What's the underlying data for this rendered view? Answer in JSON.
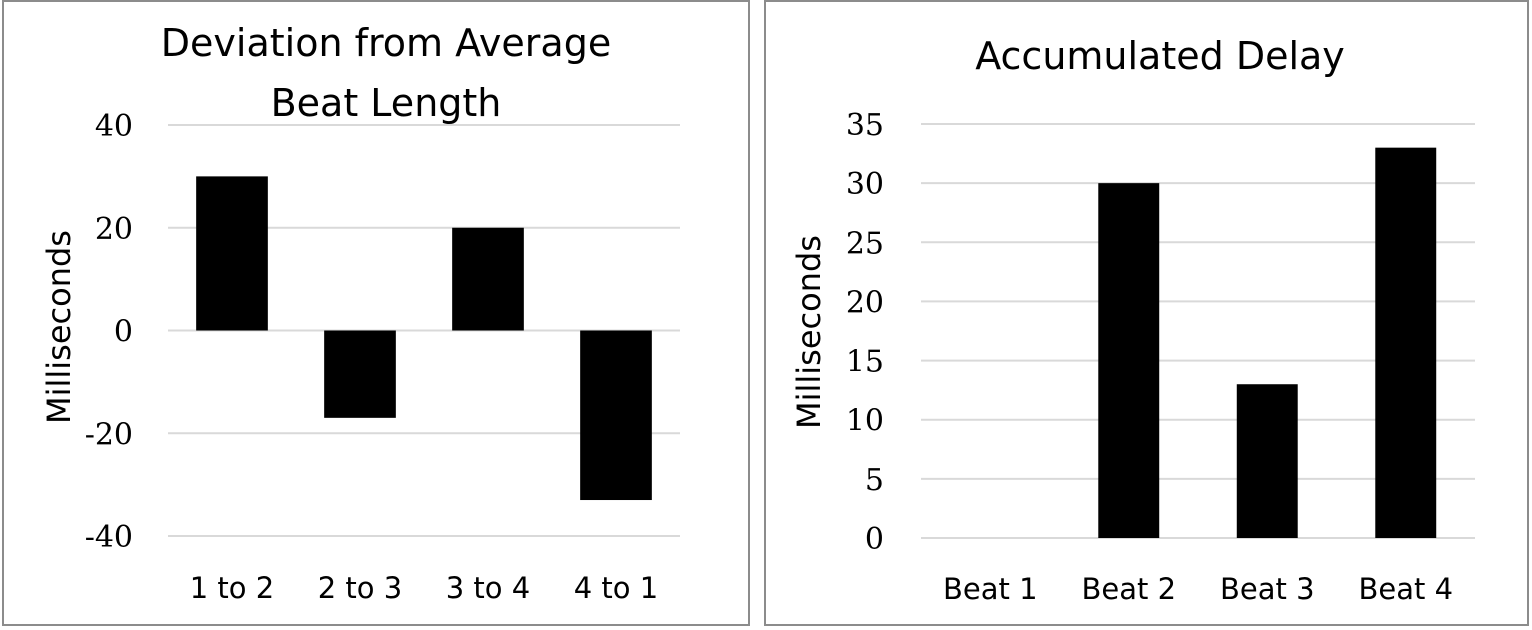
{
  "chart_data": [
    {
      "type": "bar",
      "title_lines": [
        "Deviation from Average",
        "Beat Length"
      ],
      "xlabel": "",
      "ylabel": "Milliseconds",
      "categories": [
        "1 to 2",
        "2 to 3",
        "3 to 4",
        "4 to 1"
      ],
      "values": [
        30,
        -17,
        20,
        -33
      ],
      "ylim": [
        -40,
        40
      ],
      "yticks": [
        40,
        20,
        0,
        -20,
        -40
      ],
      "grid": true,
      "bar_color": "#000000",
      "grid_color": "#d9d9d9"
    },
    {
      "type": "bar",
      "title_lines": [
        "Accumulated Delay"
      ],
      "xlabel": "",
      "ylabel": "Milliseconds",
      "categories": [
        "Beat 1",
        "Beat 2",
        "Beat 3",
        "Beat 4"
      ],
      "values": [
        0,
        30,
        13,
        33
      ],
      "ylim": [
        0,
        35
      ],
      "yticks": [
        35,
        30,
        25,
        20,
        15,
        10,
        5,
        0
      ],
      "grid": true,
      "bar_color": "#000000",
      "grid_color": "#d9d9d9"
    }
  ]
}
